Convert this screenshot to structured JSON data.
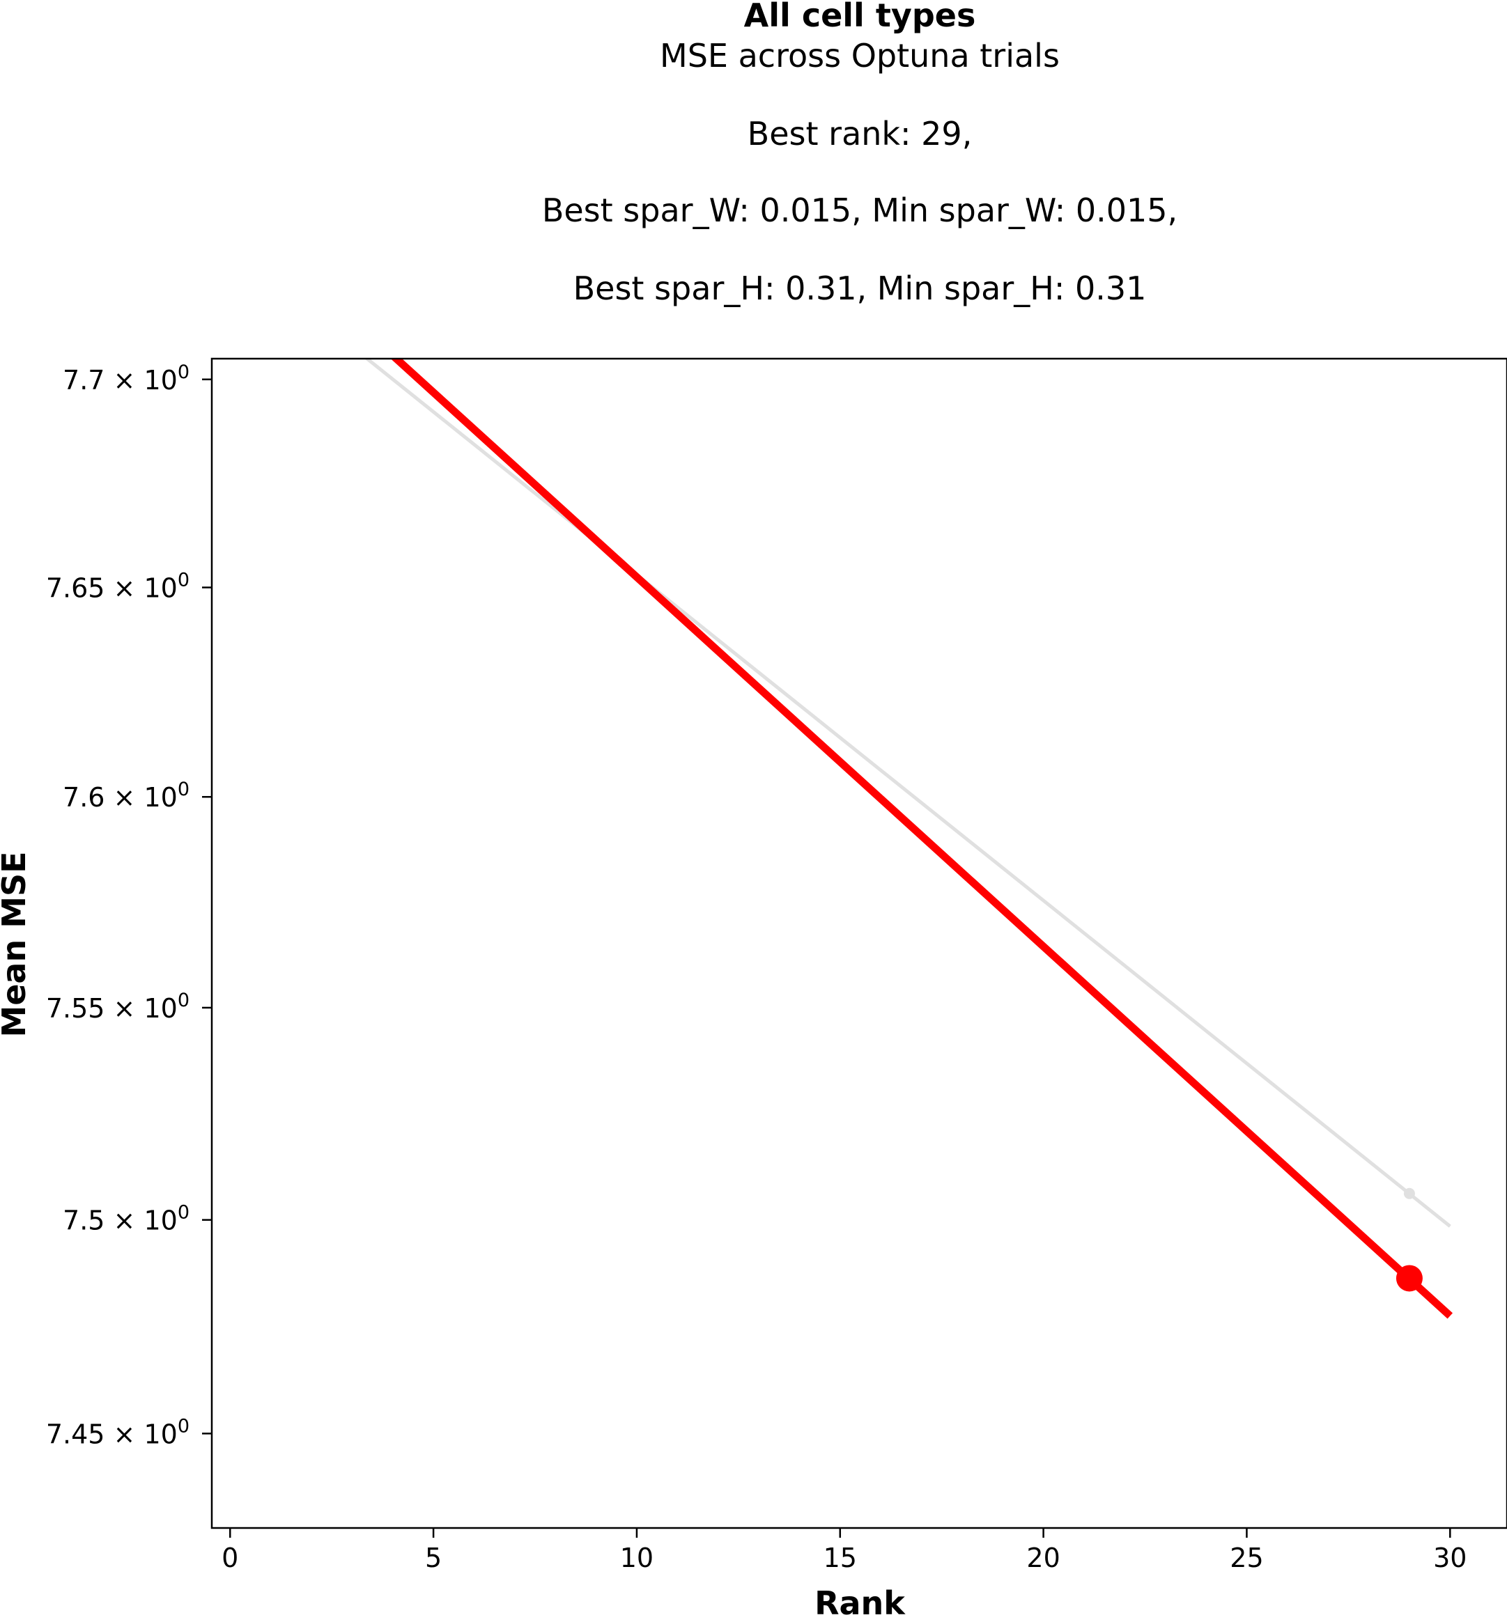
{
  "chart_data": {
    "type": "line",
    "title": "All cell types",
    "subtitle_lines": [
      "MSE across Optuna trials",
      "Best rank: 29,",
      "Best spar_W: 0.015, Min spar_W: 0.015,",
      "Best spar_H: 0.31, Min spar_H: 0.31"
    ],
    "xlabel": "Rank",
    "ylabel": "Mean MSE",
    "xlim": [
      -0.45,
      31.4
    ],
    "ylim": [
      7.428,
      7.705
    ],
    "yscale": "log",
    "x_ticks": [
      0,
      5,
      10,
      15,
      20,
      25,
      30
    ],
    "y_ticks": [
      {
        "value": 7.45,
        "mantissa": "7.45",
        "exponent": "0"
      },
      {
        "value": 7.5,
        "mantissa": "7.5",
        "exponent": "0"
      },
      {
        "value": 7.55,
        "mantissa": "7.55",
        "exponent": "0"
      },
      {
        "value": 7.6,
        "mantissa": "7.6",
        "exponent": "0"
      },
      {
        "value": 7.65,
        "mantissa": "7.65",
        "exponent": "0"
      },
      {
        "value": 7.7,
        "mantissa": "7.7",
        "exponent": "0"
      }
    ],
    "times_symbol": "×",
    "base": "10",
    "grid": false,
    "series": [
      {
        "color": "#e0e0e0",
        "x": [
          0,
          30
        ],
        "y": [
          7.7315,
          7.4985
        ],
        "marker": {
          "x": 29,
          "y": 7.5062
        }
      },
      {
        "color": "#ff0000",
        "x": [
          0,
          30
        ],
        "y": [
          7.7415,
          7.4775
        ],
        "marker": {
          "x": 29,
          "y": 7.4863
        }
      }
    ]
  }
}
